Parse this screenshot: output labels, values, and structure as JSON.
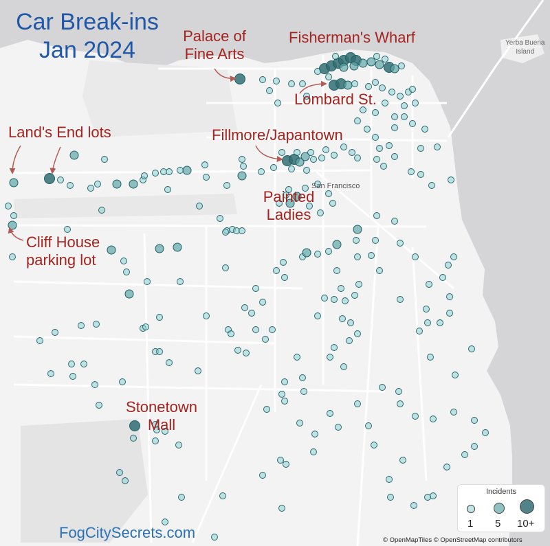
{
  "title": {
    "line1": "Car Break-ins",
    "line2": "Jan 2024"
  },
  "annotations": {
    "palace": {
      "line1": "Palace of",
      "line2": "Fine Arts"
    },
    "fishermans_wharf": "Fisherman's Wharf",
    "lombard": "Lombard St.",
    "lands_end": "Land's End lots",
    "fillmore": "Fillmore/Japantown",
    "painted": {
      "line1": "Painted",
      "line2": "Ladies"
    },
    "cliff_house": {
      "line1": "Cliff House",
      "line2": "parking lot"
    },
    "stonetown": {
      "line1": "Stonetown",
      "line2": "Mall"
    }
  },
  "map_labels": {
    "yerba_buena": {
      "line1": "Yerba Buena",
      "line2": "Island"
    },
    "san_francisco": "San Francisco"
  },
  "legend": {
    "title": "Incidents",
    "values": [
      "1",
      "5",
      "10+"
    ]
  },
  "website": "FogCitySecrets.com",
  "attribution": "© OpenMapTiles © OpenStreetMap contributors",
  "colors": {
    "water": "#d5d5d7",
    "land": "#f3f3f3",
    "park": "#e6e6e6",
    "road": "#ffffff",
    "marker_fill": "#5fa6a8",
    "marker_stroke": "#1e5f66",
    "title": "#1f58a8",
    "annotation": "#a4241f",
    "website": "#2a72b8"
  },
  "incident_scale": {
    "legend_levels": [
      1,
      5,
      10
    ]
  }
}
